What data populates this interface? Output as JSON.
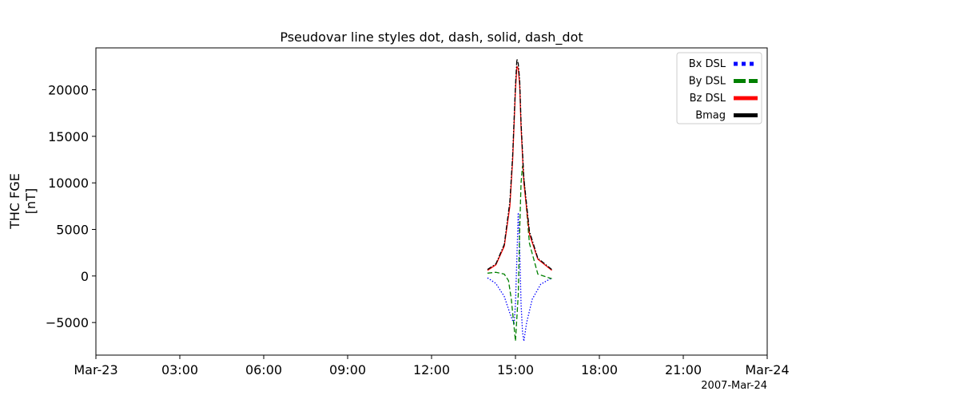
{
  "chart_data": {
    "type": "line",
    "title": "Pseudovar line styles dot, dash, solid, dash_dot",
    "ylabel_line1": "THC FGE",
    "ylabel_line2": "[nT]",
    "xlabel": "",
    "date_label": "2007-Mar-24",
    "x_unit": "hours since 2007-03-23 00:00",
    "xlim": [
      0,
      24
    ],
    "ylim": [
      -8500,
      24500
    ],
    "x_ticks": [
      0,
      3,
      6,
      9,
      12,
      15,
      18,
      21,
      24
    ],
    "x_tick_labels": [
      "Mar-23",
      "03:00",
      "06:00",
      "09:00",
      "12:00",
      "15:00",
      "18:00",
      "21:00",
      "Mar-24"
    ],
    "y_ticks": [
      -5000,
      0,
      5000,
      10000,
      15000,
      20000
    ],
    "y_tick_labels": [
      "−5000",
      "0",
      "5000",
      "10000",
      "15000",
      "20000"
    ],
    "grid": false,
    "legend_placement": "top-right",
    "series": [
      {
        "name": "Bx DSL",
        "color": "#0000ff",
        "style": "dot",
        "x": [
          14.0,
          14.3,
          14.6,
          14.8,
          14.95,
          15.0,
          15.05,
          15.1,
          15.15,
          15.2,
          15.25,
          15.3,
          15.4,
          15.6,
          15.9,
          16.3
        ],
        "y": [
          -200,
          -800,
          -2200,
          -4000,
          -5200,
          -3000,
          2000,
          6800,
          3000,
          -3000,
          -6000,
          -7000,
          -5000,
          -2500,
          -900,
          -200
        ]
      },
      {
        "name": "By DSL",
        "color": "#008000",
        "style": "dash",
        "x": [
          14.0,
          14.3,
          14.6,
          14.75,
          14.85,
          14.95,
          15.0,
          15.1,
          15.15,
          15.2,
          15.25,
          15.3,
          15.5,
          15.8,
          16.3
        ],
        "y": [
          300,
          400,
          200,
          -500,
          -2500,
          -5500,
          -7000,
          -2000,
          5000,
          10000,
          11800,
          10500,
          3500,
          200,
          -300
        ]
      },
      {
        "name": "Bz DSL",
        "color": "#ff0000",
        "style": "solid",
        "x": [
          14.0,
          14.3,
          14.6,
          14.8,
          14.9,
          15.0,
          15.05,
          15.1,
          15.15,
          15.2,
          15.3,
          15.5,
          15.8,
          16.3
        ],
        "y": [
          600,
          1200,
          3200,
          7500,
          12500,
          20000,
          22500,
          22300,
          20500,
          16000,
          10000,
          4500,
          1800,
          600
        ]
      },
      {
        "name": "Bmag",
        "color": "#000000",
        "style": "dash_dot",
        "x": [
          14.0,
          14.3,
          14.6,
          14.8,
          14.9,
          15.0,
          15.05,
          15.1,
          15.15,
          15.2,
          15.3,
          15.5,
          15.8,
          16.3
        ],
        "y": [
          700,
          1300,
          3400,
          8000,
          13000,
          20500,
          23300,
          22800,
          21000,
          16500,
          10500,
          4800,
          1900,
          700
        ]
      }
    ]
  }
}
